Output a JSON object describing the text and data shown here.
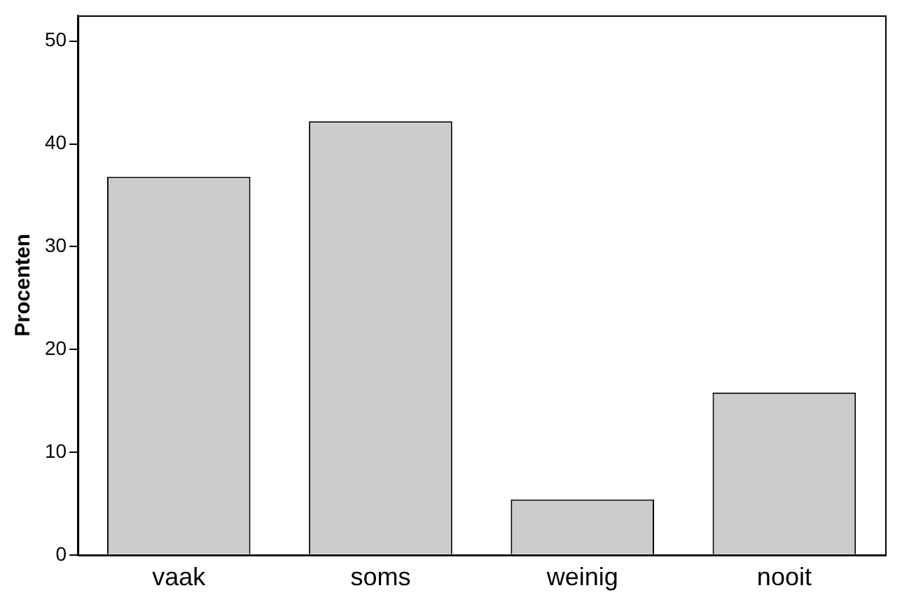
{
  "chart_data": {
    "type": "bar",
    "ylabel": "Procenten",
    "categories": [
      "vaak",
      "soms",
      "weinig",
      "nooit"
    ],
    "values": [
      36.8,
      42.2,
      5.4,
      15.8
    ],
    "color": "#cccccc",
    "ylim": [
      0,
      52.5
    ],
    "yticks": [
      0,
      10,
      20,
      30,
      40,
      50
    ],
    "grid": false,
    "legend": false
  }
}
